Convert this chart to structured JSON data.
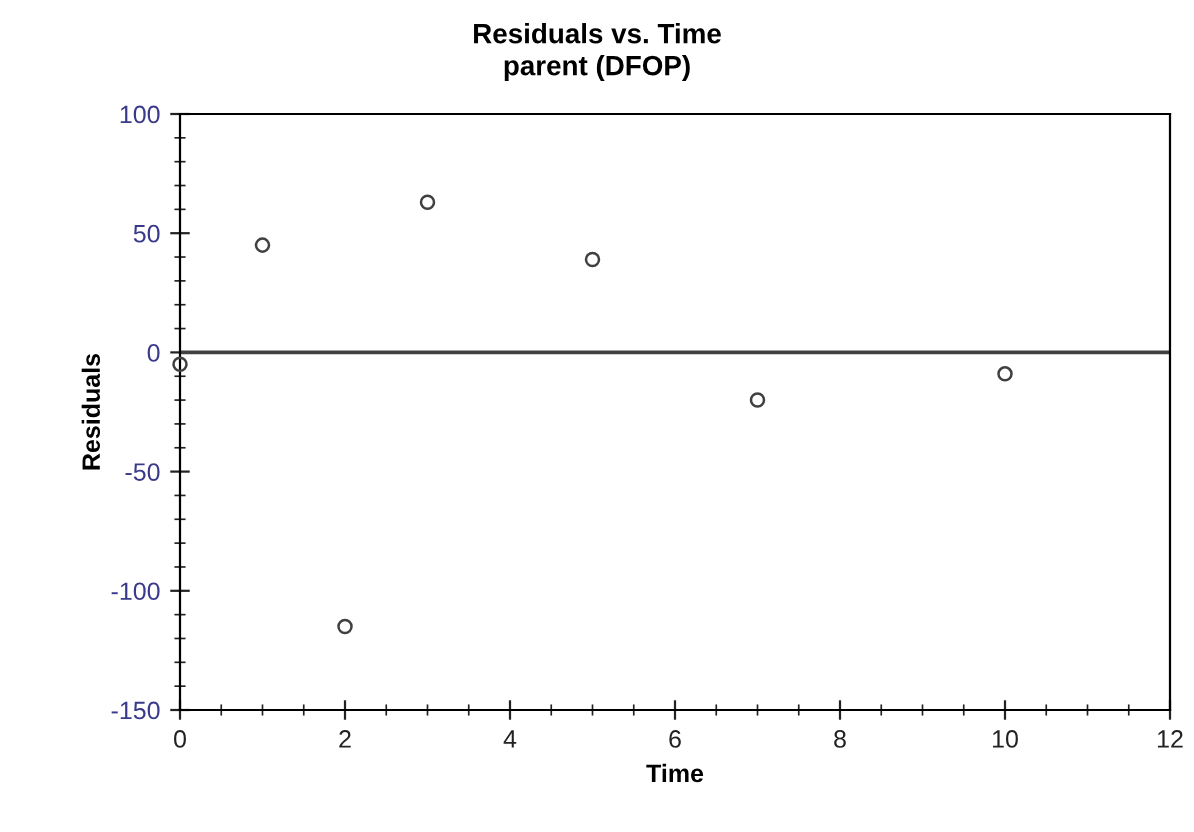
{
  "chart_data": {
    "type": "scatter",
    "title": "Residuals vs. Time",
    "subtitle": "parent (DFOP)",
    "xlabel": "Time",
    "ylabel": "Residuals",
    "x": [
      0,
      1,
      2,
      3,
      5,
      7,
      10
    ],
    "series": [
      {
        "color": "#404040",
        "values": [
          -5,
          45,
          -115,
          63,
          39,
          -20,
          -9
        ]
      }
    ],
    "xlim": [
      0,
      12
    ],
    "xticks": [
      0,
      2,
      4,
      6,
      8,
      10,
      12
    ],
    "ylim": [
      -150,
      100
    ],
    "yticks": [
      -150,
      -100,
      -50,
      0,
      50,
      100
    ],
    "ref_lines": [
      {
        "axis": "y",
        "value": 0,
        "color": "#404040"
      }
    ],
    "marker": "circle",
    "grid": false
  }
}
